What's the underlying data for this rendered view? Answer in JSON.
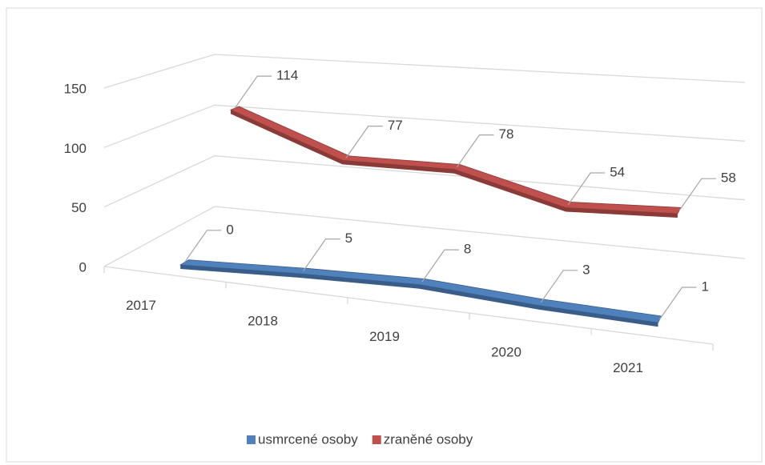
{
  "chart_data": {
    "type": "line3d",
    "categories": [
      "2017",
      "2018",
      "2019",
      "2020",
      "2021"
    ],
    "series": [
      {
        "name": "usmrcené osoby",
        "color": "#4f81bd",
        "values": [
          0,
          5,
          8,
          3,
          1
        ]
      },
      {
        "name": "zraněné osoby",
        "color": "#c0504d",
        "values": [
          114,
          77,
          78,
          54,
          58
        ]
      }
    ],
    "ylim": [
      0,
      150
    ],
    "yticks": [
      0,
      50,
      100,
      150
    ],
    "grid": true,
    "legend": "bottom"
  }
}
